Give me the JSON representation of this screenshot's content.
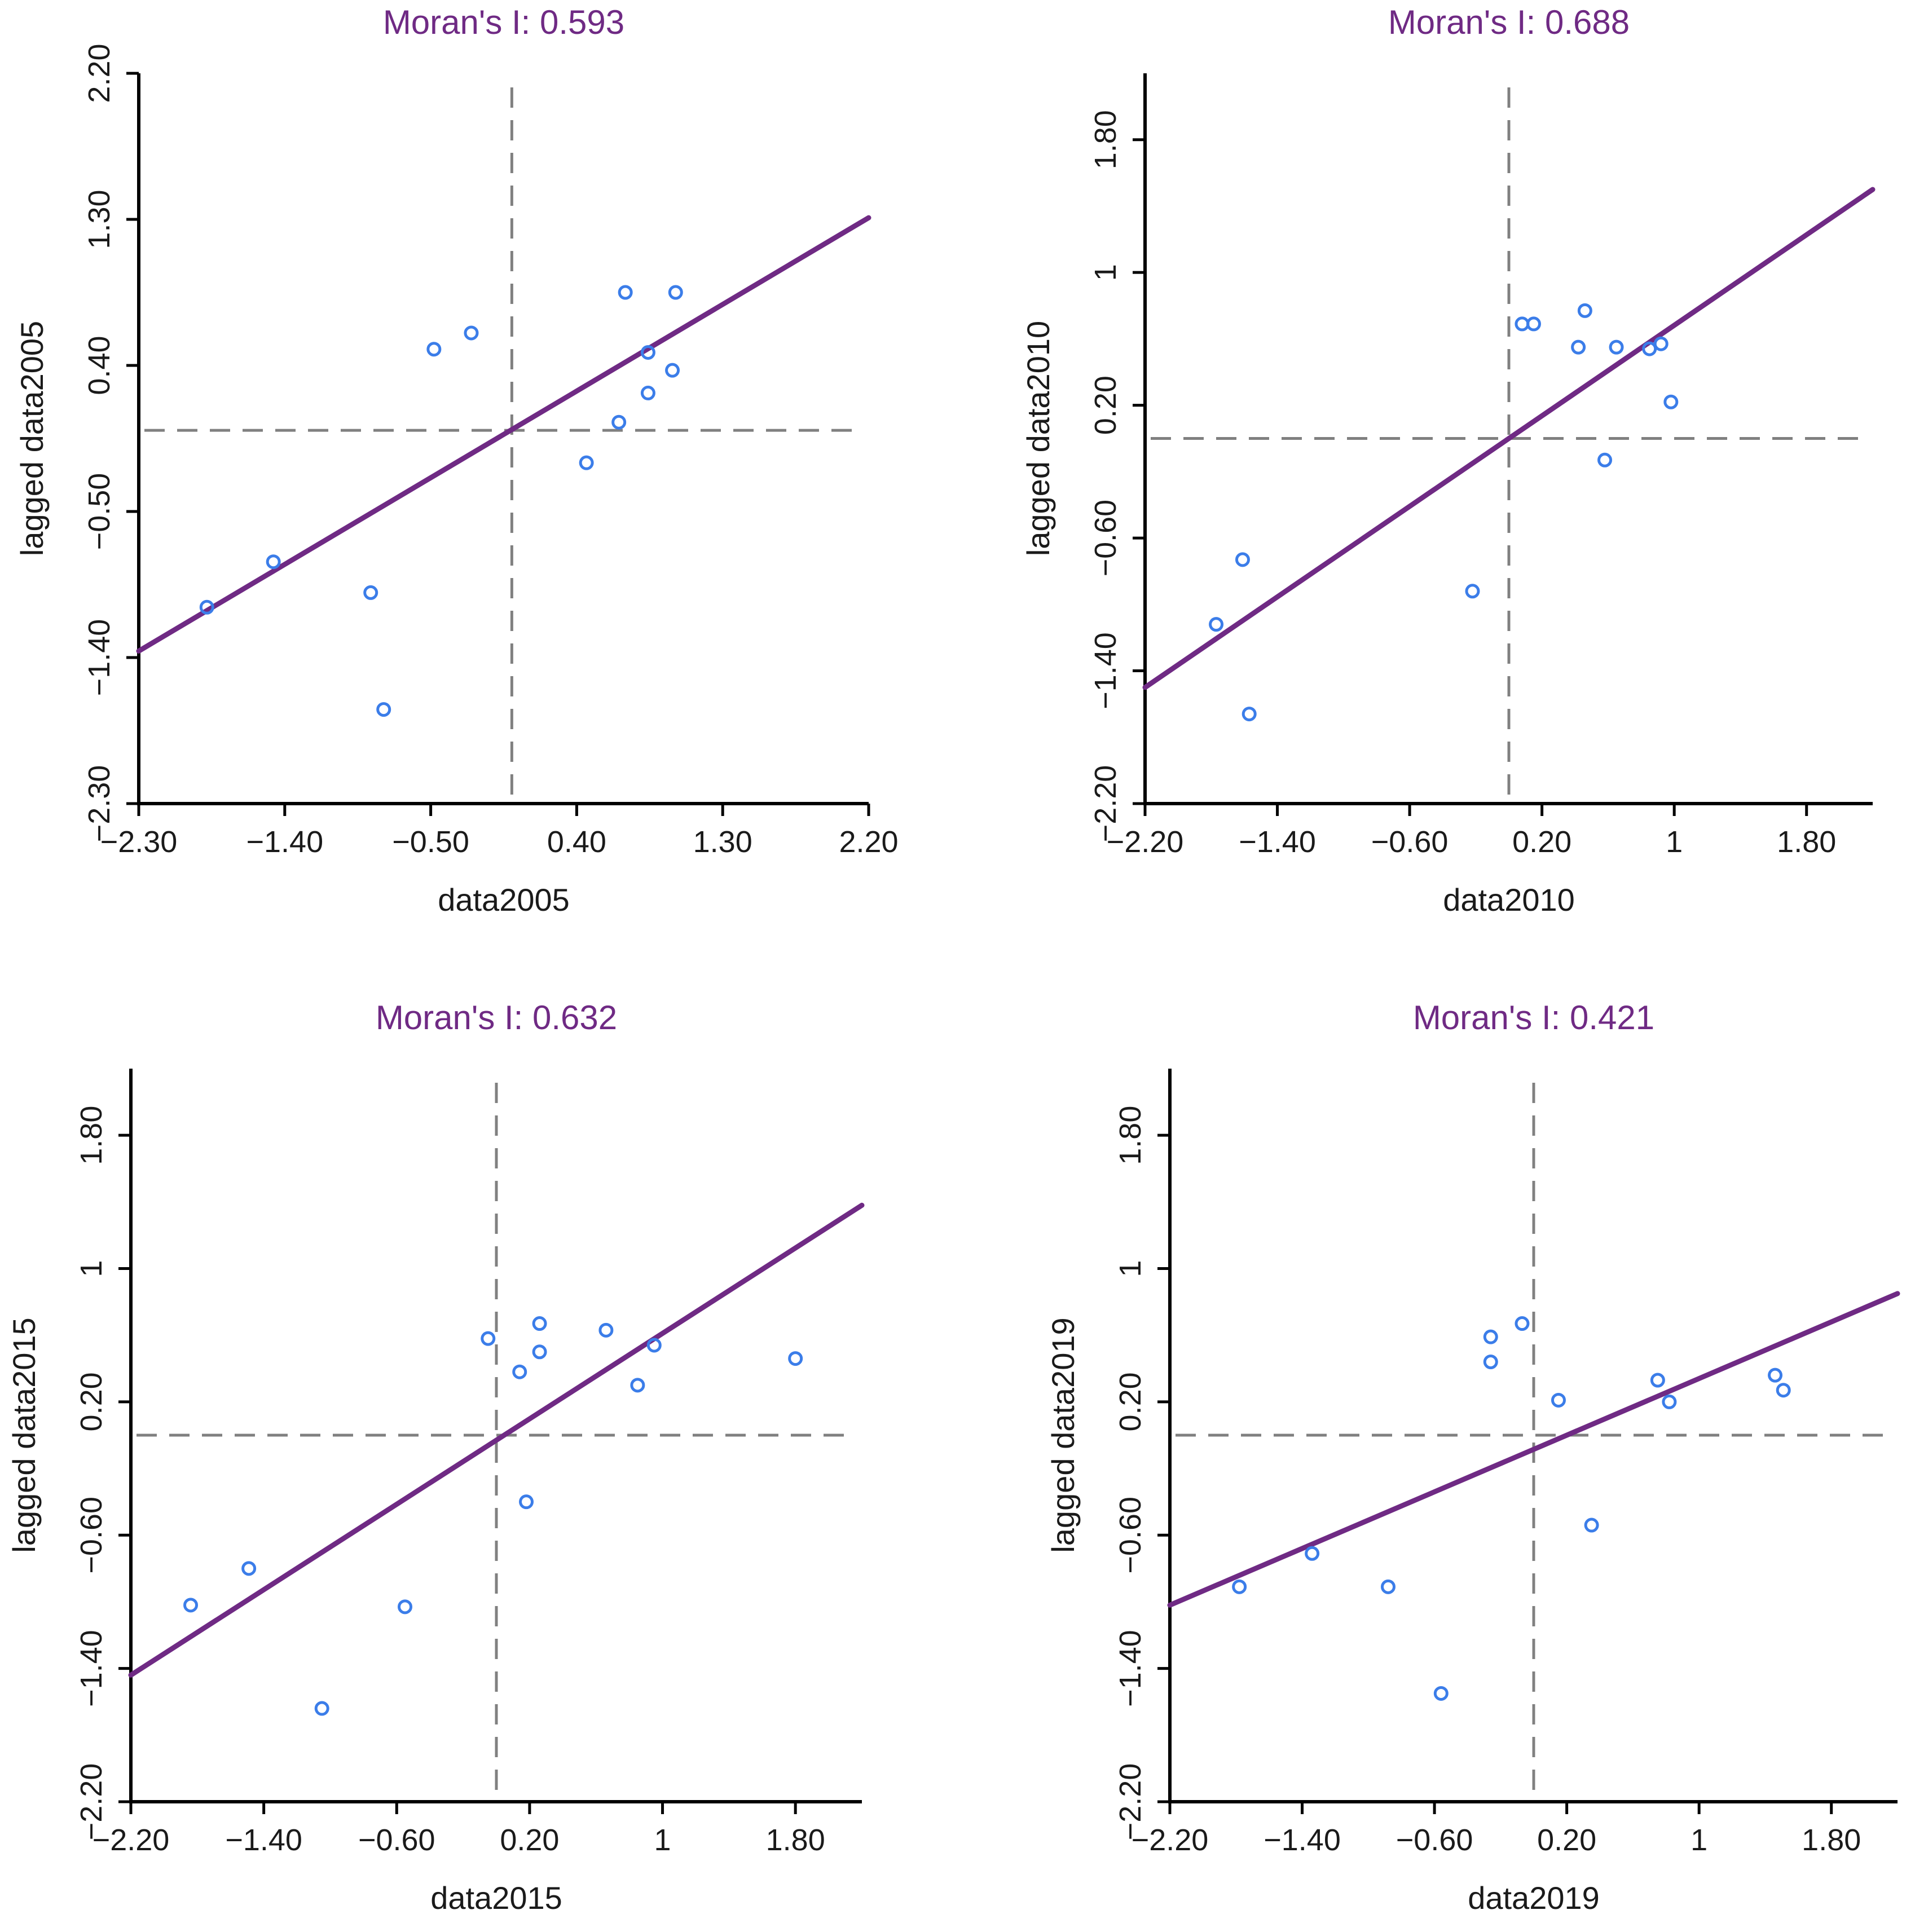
{
  "colors": {
    "title": "#6f2a84",
    "regression": "#6f2a84",
    "point": "#3b7de9",
    "reference": "#808080",
    "axis": "#000000",
    "text": "#1a1a1a"
  },
  "chart_data": [
    {
      "type": "scatter",
      "title": "Moran's I: 0.593",
      "xlabel": "data2005",
      "ylabel": "lagged data2005",
      "xlim": [
        -2.3,
        2.2
      ],
      "ylim": [
        -2.3,
        2.2
      ],
      "xticks": [
        -2.3,
        -1.4,
        -0.5,
        0.4,
        1.3,
        2.2
      ],
      "xtick_labels": [
        "−2.30",
        "−1.40",
        "−0.50",
        "0.40",
        "1.30",
        "2.20"
      ],
      "yticks": [
        -2.3,
        -1.4,
        -0.5,
        0.4,
        1.3,
        2.2
      ],
      "ytick_labels": [
        "−2.30",
        "−1.40",
        "−0.50",
        "0.40",
        "1.30",
        "2.20"
      ],
      "ref_x": 0.0,
      "ref_y": 0.0,
      "regression": {
        "x": [
          -2.3,
          2.2
        ],
        "y": [
          -1.36,
          1.31
        ]
      },
      "x": [
        -1.88,
        -1.47,
        -0.87,
        -0.79,
        -0.48,
        -0.25,
        0.46,
        0.66,
        0.7,
        0.84,
        0.84,
        0.99,
        1.01
      ],
      "y": [
        -1.09,
        -0.81,
        -1.0,
        -1.72,
        0.5,
        0.6,
        -0.2,
        0.05,
        0.85,
        0.23,
        0.48,
        0.37,
        0.85
      ]
    },
    {
      "type": "scatter",
      "title": "Moran's I: 0.688",
      "xlabel": "data2010",
      "ylabel": "lagged data2010",
      "xlim": [
        -2.2,
        2.2
      ],
      "ylim": [
        -2.2,
        2.2
      ],
      "xticks": [
        -2.2,
        -1.4,
        -0.6,
        0.2,
        1.0,
        1.8
      ],
      "xtick_labels": [
        "−2.20",
        "−1.40",
        "−0.60",
        "0.20",
        "1",
        "1.80"
      ],
      "yticks": [
        -2.2,
        -1.4,
        -0.6,
        0.2,
        1.0,
        1.8
      ],
      "ytick_labels": [
        "−2.20",
        "−1.40",
        "−0.60",
        "0.20",
        "1",
        "1.80"
      ],
      "ref_x": 0.0,
      "ref_y": 0.0,
      "regression": {
        "x": [
          -2.2,
          2.2
        ],
        "y": [
          -1.5,
          1.5
        ]
      },
      "x": [
        -1.77,
        -1.61,
        -1.57,
        -0.22,
        0.08,
        0.15,
        0.42,
        0.46,
        0.58,
        0.65,
        0.85,
        0.92,
        0.98
      ],
      "y": [
        -1.12,
        -0.73,
        -1.66,
        -0.92,
        0.69,
        0.69,
        0.55,
        0.77,
        -0.13,
        0.55,
        0.54,
        0.57,
        0.22
      ]
    },
    {
      "type": "scatter",
      "title": "Moran's I: 0.632",
      "xlabel": "data2015",
      "ylabel": "lagged data2015",
      "xlim": [
        -2.2,
        2.2
      ],
      "ylim": [
        -2.2,
        2.2
      ],
      "xticks": [
        -2.2,
        -1.4,
        -0.6,
        0.2,
        1.0,
        1.8
      ],
      "xtick_labels": [
        "−2.20",
        "−1.40",
        "−0.60",
        "0.20",
        "1",
        "1.80"
      ],
      "yticks": [
        -2.2,
        -1.4,
        -0.6,
        0.2,
        1.0,
        1.8
      ],
      "ytick_labels": [
        "−2.20",
        "−1.40",
        "−0.60",
        "0.20",
        "1",
        "1.80"
      ],
      "ref_x": 0.0,
      "ref_y": 0.0,
      "regression": {
        "x": [
          -2.2,
          2.2
        ],
        "y": [
          -1.44,
          1.38
        ]
      },
      "x": [
        -1.84,
        -1.49,
        -1.05,
        -0.55,
        -0.05,
        0.14,
        0.18,
        0.26,
        0.26,
        0.66,
        0.85,
        0.95,
        1.8
      ],
      "y": [
        -1.02,
        -0.8,
        -1.64,
        -1.03,
        0.58,
        0.38,
        -0.4,
        0.5,
        0.67,
        0.63,
        0.3,
        0.54,
        0.46
      ]
    },
    {
      "type": "scatter",
      "title": "Moran's I: 0.421",
      "xlabel": "data2019",
      "ylabel": "lagged data2019",
      "xlim": [
        -2.2,
        2.2
      ],
      "ylim": [
        -2.2,
        2.2
      ],
      "xticks": [
        -2.2,
        -1.4,
        -0.6,
        0.2,
        1.0,
        1.8
      ],
      "xtick_labels": [
        "−2.20",
        "−1.40",
        "−0.60",
        "0.20",
        "1",
        "1.80"
      ],
      "yticks": [
        -2.2,
        -1.4,
        -0.6,
        0.2,
        1.0,
        1.8
      ],
      "ytick_labels": [
        "−2.20",
        "−1.40",
        "−0.60",
        "0.20",
        "1",
        "1.80"
      ],
      "ref_x": 0.0,
      "ref_y": 0.0,
      "regression": {
        "x": [
          -2.2,
          2.2
        ],
        "y": [
          -1.02,
          0.85
        ]
      },
      "x": [
        -1.78,
        -1.34,
        -0.88,
        -0.56,
        -0.26,
        -0.26,
        -0.07,
        0.15,
        0.35,
        0.75,
        0.82,
        1.46,
        1.51
      ],
      "y": [
        -0.91,
        -0.71,
        -0.91,
        -1.55,
        0.44,
        0.59,
        0.67,
        0.21,
        -0.54,
        0.33,
        0.2,
        0.36,
        0.27
      ]
    }
  ]
}
